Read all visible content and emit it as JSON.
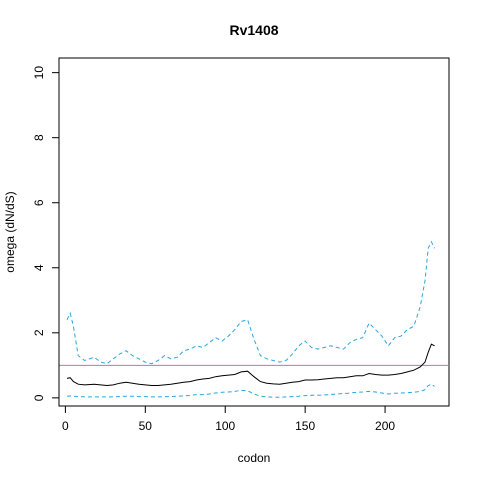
{
  "chart_data": {
    "type": "line",
    "title": "Rv1408",
    "xlabel": "codon",
    "ylabel": "omega (dN/dS)",
    "xlim": [
      -4,
      240
    ],
    "ylim": [
      -0.25,
      10.45
    ],
    "xticks": [
      0,
      50,
      100,
      150,
      200
    ],
    "yticks": [
      0,
      2,
      4,
      6,
      8,
      10
    ],
    "grid": false,
    "reference_line": {
      "y": 1,
      "color": "#cc66cc"
    },
    "series": [
      {
        "role": "upper",
        "style": "dashed",
        "color": "#29a6e0",
        "x": [
          1,
          3,
          5,
          8,
          12,
          18,
          22,
          26,
          30,
          34,
          38,
          42,
          46,
          50,
          54,
          58,
          62,
          66,
          70,
          74,
          78,
          82,
          86,
          90,
          94,
          98,
          102,
          106,
          110,
          114,
          118,
          122,
          126,
          130,
          134,
          138,
          142,
          146,
          150,
          154,
          158,
          162,
          166,
          170,
          174,
          178,
          182,
          186,
          190,
          194,
          198,
          202,
          206,
          210,
          214,
          218,
          222,
          225,
          227,
          229,
          231
        ],
        "values": [
          2.4,
          2.6,
          2.2,
          1.3,
          1.15,
          1.25,
          1.1,
          1.05,
          1.2,
          1.35,
          1.45,
          1.3,
          1.2,
          1.1,
          1.05,
          1.15,
          1.3,
          1.2,
          1.25,
          1.45,
          1.5,
          1.6,
          1.55,
          1.7,
          1.85,
          1.75,
          1.9,
          2.1,
          2.35,
          2.4,
          1.8,
          1.3,
          1.2,
          1.15,
          1.1,
          1.15,
          1.35,
          1.6,
          1.75,
          1.55,
          1.5,
          1.55,
          1.6,
          1.55,
          1.5,
          1.7,
          1.8,
          1.85,
          2.3,
          2.1,
          1.9,
          1.6,
          1.85,
          1.9,
          2.1,
          2.2,
          2.8,
          3.6,
          4.6,
          4.8,
          4.6
        ]
      },
      {
        "role": "estimate",
        "style": "solid",
        "color": "#000000",
        "x": [
          1,
          3,
          5,
          8,
          12,
          18,
          22,
          26,
          30,
          34,
          38,
          42,
          46,
          50,
          54,
          58,
          62,
          66,
          70,
          74,
          78,
          82,
          86,
          90,
          94,
          98,
          102,
          106,
          110,
          114,
          118,
          122,
          126,
          130,
          134,
          138,
          142,
          146,
          150,
          154,
          158,
          162,
          166,
          170,
          174,
          178,
          182,
          186,
          190,
          194,
          198,
          202,
          206,
          210,
          214,
          218,
          222,
          225,
          227,
          229,
          231
        ],
        "values": [
          0.6,
          0.62,
          0.5,
          0.42,
          0.4,
          0.42,
          0.4,
          0.38,
          0.4,
          0.45,
          0.48,
          0.45,
          0.42,
          0.4,
          0.38,
          0.38,
          0.4,
          0.42,
          0.45,
          0.48,
          0.5,
          0.55,
          0.58,
          0.6,
          0.65,
          0.68,
          0.7,
          0.72,
          0.8,
          0.82,
          0.65,
          0.5,
          0.45,
          0.43,
          0.42,
          0.45,
          0.48,
          0.5,
          0.55,
          0.55,
          0.56,
          0.58,
          0.6,
          0.62,
          0.62,
          0.65,
          0.68,
          0.68,
          0.75,
          0.72,
          0.7,
          0.7,
          0.72,
          0.75,
          0.8,
          0.85,
          0.95,
          1.1,
          1.4,
          1.65,
          1.6
        ]
      },
      {
        "role": "lower",
        "style": "dashed",
        "color": "#29a6e0",
        "x": [
          1,
          3,
          5,
          8,
          12,
          18,
          22,
          26,
          30,
          34,
          38,
          42,
          46,
          50,
          54,
          58,
          62,
          66,
          70,
          74,
          78,
          82,
          86,
          90,
          94,
          98,
          102,
          106,
          110,
          114,
          118,
          122,
          126,
          130,
          134,
          138,
          142,
          146,
          150,
          154,
          158,
          162,
          166,
          170,
          174,
          178,
          182,
          186,
          190,
          194,
          198,
          202,
          206,
          210,
          214,
          218,
          222,
          225,
          227,
          229,
          231
        ],
        "values": [
          0.05,
          0.06,
          0.05,
          0.04,
          0.03,
          0.03,
          0.03,
          0.03,
          0.03,
          0.04,
          0.05,
          0.05,
          0.04,
          0.04,
          0.03,
          0.03,
          0.04,
          0.04,
          0.05,
          0.06,
          0.08,
          0.1,
          0.1,
          0.12,
          0.15,
          0.17,
          0.18,
          0.2,
          0.23,
          0.22,
          0.12,
          0.05,
          0.03,
          0.02,
          0.02,
          0.03,
          0.04,
          0.05,
          0.07,
          0.08,
          0.08,
          0.09,
          0.1,
          0.12,
          0.13,
          0.15,
          0.17,
          0.18,
          0.2,
          0.18,
          0.15,
          0.12,
          0.14,
          0.15,
          0.16,
          0.17,
          0.2,
          0.25,
          0.38,
          0.42,
          0.35
        ]
      }
    ]
  }
}
